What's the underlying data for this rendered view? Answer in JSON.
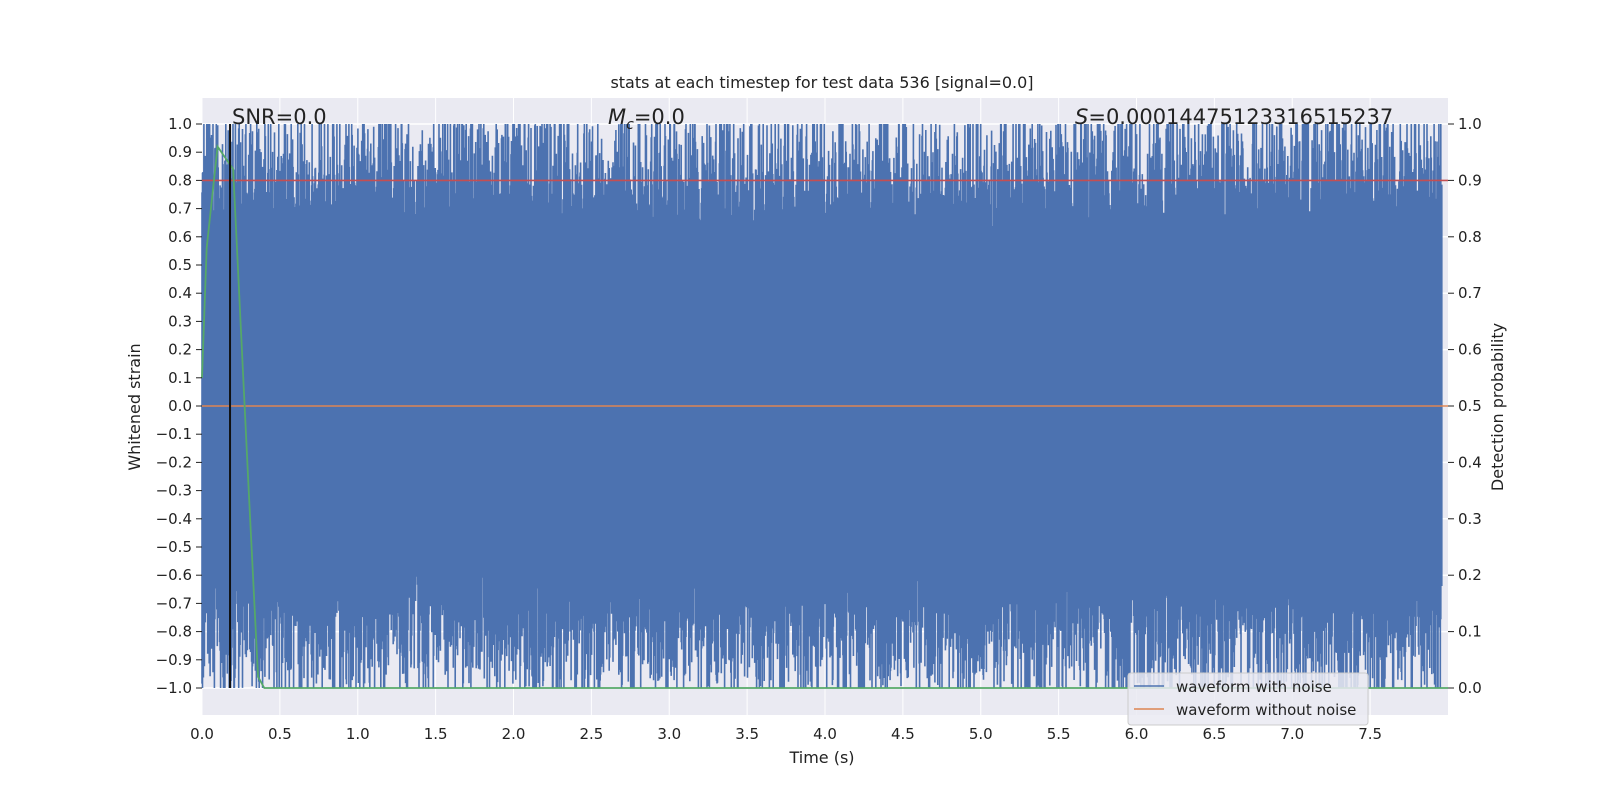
{
  "chart_data": {
    "type": "line",
    "title": "stats at each timestep for test data 536 [signal=0.0]",
    "xlabel": "Time (s)",
    "ylabel": "Whitened strain",
    "y2label": "Detection probability",
    "xlim": [
      0.0,
      8.0
    ],
    "ylim": [
      -1.0,
      1.0
    ],
    "y2lim": [
      0.0,
      1.0
    ],
    "xticks": [
      "0.0",
      "0.5",
      "1.0",
      "1.5",
      "2.0",
      "2.5",
      "3.0",
      "3.5",
      "4.0",
      "4.5",
      "5.0",
      "5.5",
      "6.0",
      "6.5",
      "7.0",
      "7.5"
    ],
    "yticks": [
      "1.0",
      "0.9",
      "0.8",
      "0.7",
      "0.6",
      "0.5",
      "0.4",
      "0.3",
      "0.2",
      "0.1",
      "0.0",
      "−0.1",
      "−0.2",
      "−0.3",
      "−0.4",
      "−0.5",
      "−0.6",
      "−0.7",
      "−0.8",
      "−0.9",
      "−1.0"
    ],
    "y2ticks": [
      "1.0",
      "0.9",
      "0.8",
      "0.7",
      "0.6",
      "0.5",
      "0.4",
      "0.3",
      "0.2",
      "0.1",
      "0.0"
    ],
    "grid": true,
    "legend_position": "lower right",
    "annotations": {
      "snr": "SNR=0.0",
      "mc": "=0.0",
      "mc_symbol": "M",
      "mc_sub": "c",
      "s": "=0.00014475123316515237",
      "s_symbol": "S"
    },
    "series": [
      {
        "name": "waveform with noise",
        "color": "#4c72b0",
        "description_values": {
          "min": -1.0,
          "max": 1.0,
          "note": "dense whitened noise clipped to [-1, 1]"
        }
      },
      {
        "name": "waveform without noise",
        "color": "#dd8452",
        "x": [
          0.0,
          8.0
        ],
        "y": [
          0.0,
          0.0
        ]
      },
      {
        "name": "",
        "color": "#55a868",
        "axis": "right",
        "x": [
          0.0,
          0.03,
          0.1,
          0.15,
          0.2,
          0.3,
          0.36,
          0.4,
          8.0
        ],
        "y": [
          0.55,
          0.78,
          0.96,
          0.94,
          0.92,
          0.35,
          0.02,
          0.0,
          0.0
        ]
      }
    ],
    "threshold": {
      "axis": "right",
      "value": 0.9,
      "color": "#c44e52"
    },
    "vline": {
      "x": 0.18,
      "color": "#111111"
    },
    "colors": {
      "plot_bg": "#eaeaf2",
      "grid": "#ffffff"
    }
  }
}
